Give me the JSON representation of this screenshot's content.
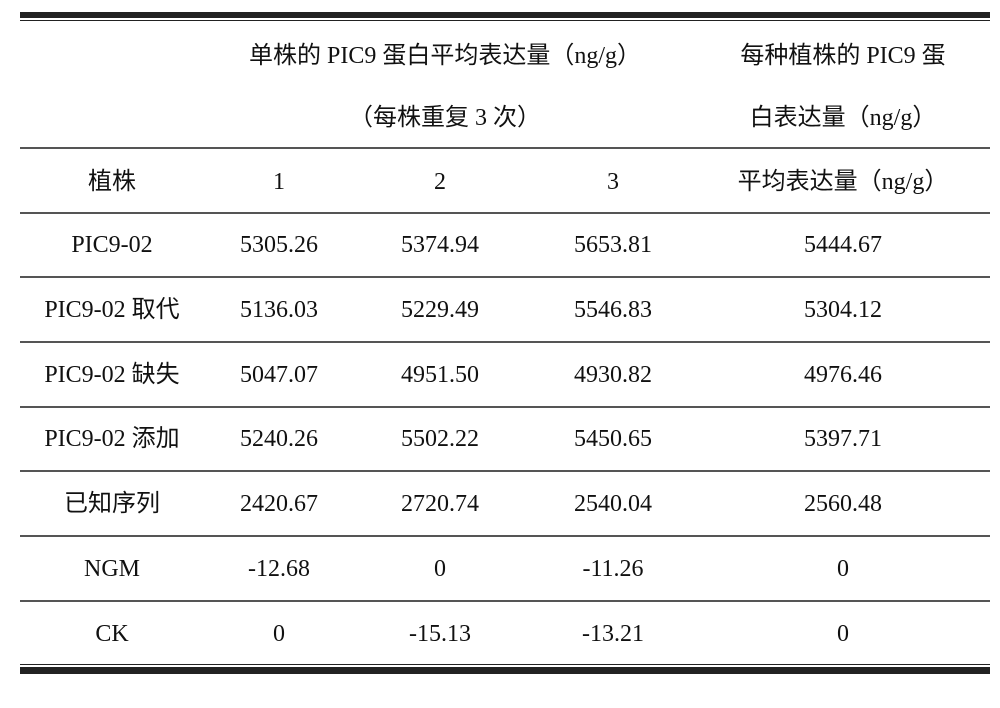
{
  "header": {
    "group_title_line1": "单株的 PIC9 蛋白平均表达量（ng/g）",
    "group_title_line2": "（每株重复 3 次）",
    "avg_title_line1": "每种植株的 PIC9 蛋",
    "avg_title_line2": "白表达量（ng/g）",
    "plant_label": "植株",
    "rep_labels": [
      "1",
      "2",
      "3"
    ],
    "avg_label": "平均表达量（ng/g）"
  },
  "rows": [
    {
      "plant": "PIC9-02",
      "values": [
        "5305.26",
        "5374.94",
        "5653.81"
      ],
      "average": "5444.67"
    },
    {
      "plant": "PIC9-02 取代",
      "values": [
        "5136.03",
        "5229.49",
        "5546.83"
      ],
      "average": "5304.12"
    },
    {
      "plant": "PIC9-02 缺失",
      "values": [
        "5047.07",
        "4951.50",
        "4930.82"
      ],
      "average": "4976.46"
    },
    {
      "plant": "PIC9-02 添加",
      "values": [
        "5240.26",
        "5502.22",
        "5450.65"
      ],
      "average": "5397.71"
    },
    {
      "plant": "已知序列",
      "values": [
        "2420.67",
        "2720.74",
        "2540.04"
      ],
      "average": "2560.48"
    },
    {
      "plant": "NGM",
      "values": [
        "-12.68",
        "0",
        "-11.26"
      ],
      "average": "0"
    },
    {
      "plant": "CK",
      "values": [
        "0",
        "-15.13",
        "-13.21"
      ],
      "average": "0"
    }
  ]
}
